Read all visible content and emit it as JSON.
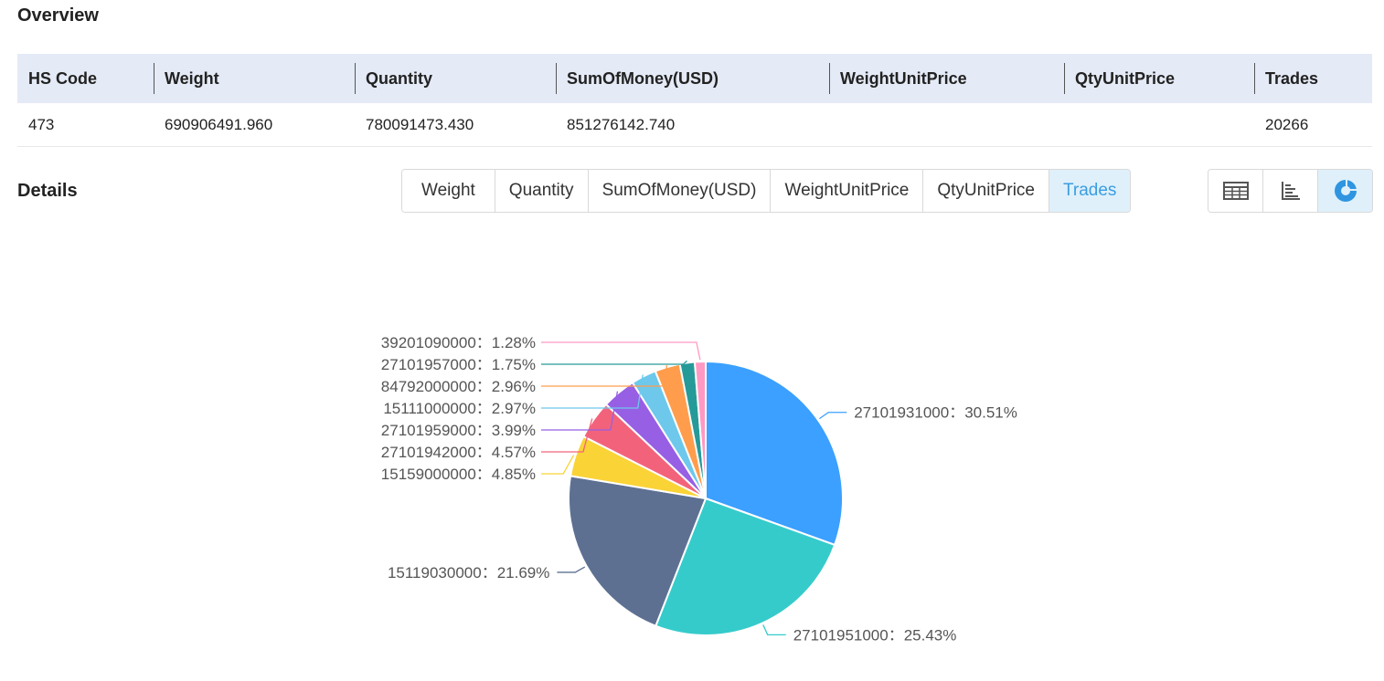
{
  "overview": {
    "title": "Overview",
    "columns": [
      "HS Code",
      "Weight",
      "Quantity",
      "SumOfMoney(USD)",
      "WeightUnitPrice",
      "QtyUnitPrice",
      "Trades"
    ],
    "row": [
      "473",
      "690906491.960",
      "780091473.430",
      "851276142.740",
      "",
      "",
      "20266"
    ]
  },
  "details": {
    "title": "Details",
    "tabs": [
      "Weight",
      "Quantity",
      "SumOfMoney(USD)",
      "WeightUnitPrice",
      "QtyUnitPrice",
      "Trades"
    ],
    "active_tab": "Trades",
    "view_icons": [
      "table-icon",
      "bar-chart-icon",
      "pie-chart-icon"
    ],
    "active_view": "pie-chart-icon"
  },
  "chart_data": {
    "type": "pie",
    "slices": [
      {
        "label": "27101931000",
        "percent": 30.51,
        "text": "27101931000：30.51%",
        "color": "#3ba0ff"
      },
      {
        "label": "27101951000",
        "percent": 25.43,
        "text": "27101951000：25.43%",
        "color": "#36cbcb"
      },
      {
        "label": "15119030000",
        "percent": 21.69,
        "text": "15119030000：21.69%",
        "color": "#5d7092"
      },
      {
        "label": "15159000000",
        "percent": 4.85,
        "text": "15159000000：4.85%",
        "color": "#fad337"
      },
      {
        "label": "27101942000",
        "percent": 4.57,
        "text": "27101942000：4.57%",
        "color": "#f2637b"
      },
      {
        "label": "27101959000",
        "percent": 3.99,
        "text": "27101959000：3.99%",
        "color": "#975fe4"
      },
      {
        "label": "15111000000",
        "percent": 2.97,
        "text": "15111000000：2.97%",
        "color": "#6dc8ec"
      },
      {
        "label": "84792000000",
        "percent": 2.96,
        "text": "84792000000：2.96%",
        "color": "#ff9d4d"
      },
      {
        "label": "27101957000",
        "percent": 1.75,
        "text": "27101957000：1.75%",
        "color": "#269a99"
      },
      {
        "label": "39201090000",
        "percent": 1.28,
        "text": "39201090000：1.28%",
        "color": "#ff99c3"
      }
    ]
  }
}
